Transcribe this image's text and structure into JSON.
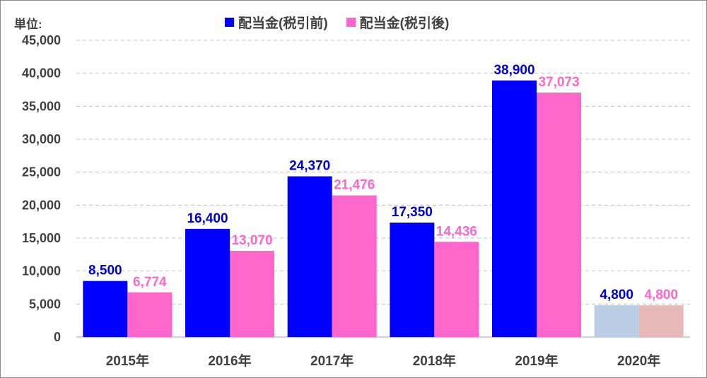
{
  "chart_data": {
    "type": "bar",
    "unit_label": "単位:",
    "categories": [
      "2015年",
      "2016年",
      "2017年",
      "2018年",
      "2019年",
      "2020年"
    ],
    "series": [
      {
        "name": "配当金(税引前)",
        "color": "#0000ff",
        "values": [
          8500,
          16400,
          24370,
          17350,
          38900,
          4800
        ],
        "labels": [
          "8,500",
          "16,400",
          "24,370",
          "17,350",
          "38,900",
          "4,800"
        ],
        "highlight_last_color": "#b9cde5",
        "label_color": "#0000cc"
      },
      {
        "name": "配当金(税引後)",
        "color": "#ff66cc",
        "values": [
          6774,
          13070,
          21476,
          14436,
          37073,
          4800
        ],
        "labels": [
          "6,774",
          "13,070",
          "21,476",
          "14,436",
          "37,073",
          "4,800"
        ],
        "highlight_last_color": "#e6b9b8",
        "label_color": "#ff66cc"
      }
    ],
    "yticks": [
      "0",
      "5,000",
      "10,000",
      "15,000",
      "20,000",
      "25,000",
      "30,000",
      "35,000",
      "40,000",
      "45,000"
    ],
    "ylim": [
      0,
      45000
    ],
    "grid": true,
    "legend_position": "top"
  }
}
